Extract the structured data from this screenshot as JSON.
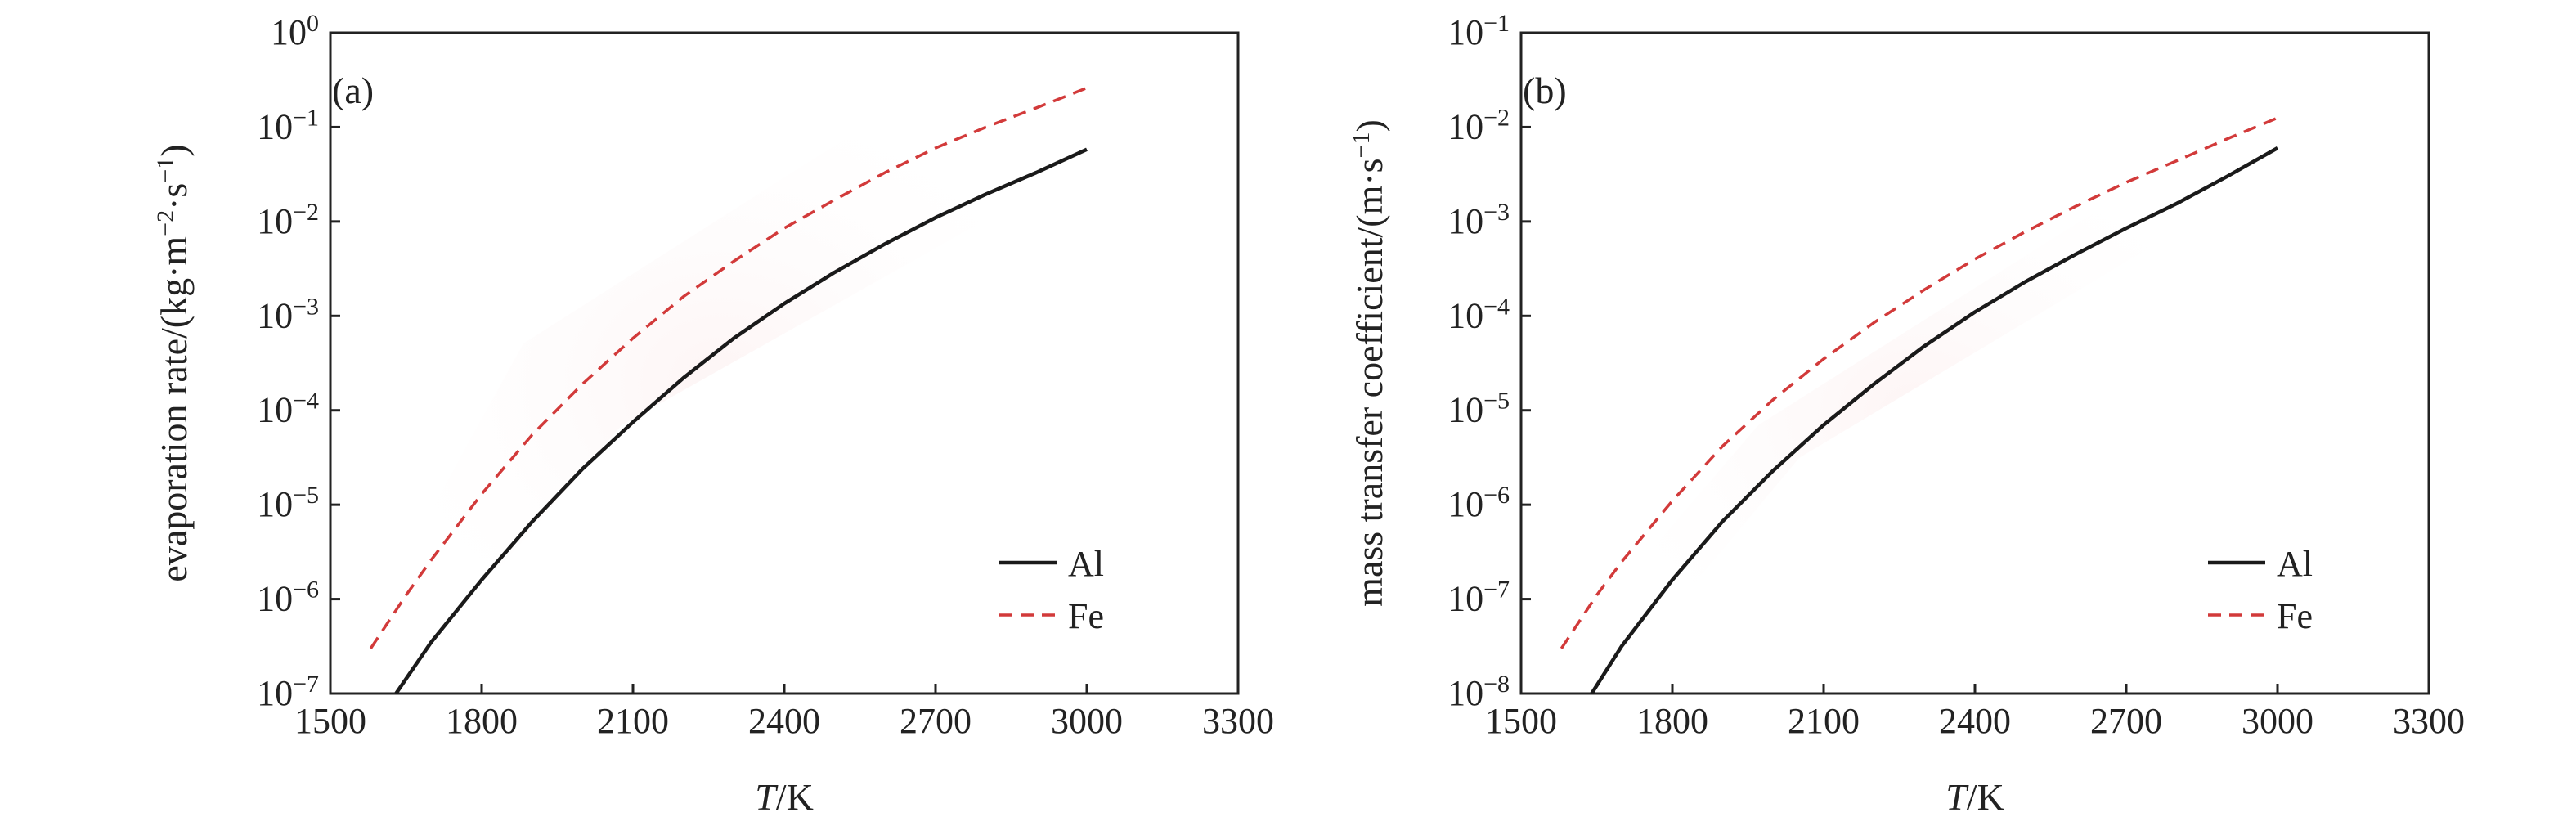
{
  "chart_data": [
    {
      "type": "line",
      "panel_label": "(a)",
      "x_var": "T",
      "x_unit": "/K",
      "ylabel": "evaporation rate/(kg·m",
      "ylabel_unit_tail": "·s",
      "ylabel_end": ")",
      "x_ticks": [
        "1500",
        "1800",
        "2100",
        "2400",
        "2700",
        "3000",
        "3300"
      ],
      "xlim": [
        1500,
        3300
      ],
      "y_scale": "log",
      "ylim": [
        1e-07,
        1
      ],
      "y_tick_exponents": [
        "-7",
        "-6",
        "-5",
        "-4",
        "-3",
        "-2",
        "-1",
        "0"
      ],
      "legend_position": "lower-right",
      "series": [
        {
          "name": "Al",
          "color": "#1a1a1a",
          "style": "solid",
          "x": [
            1630,
            1700,
            1800,
            1900,
            2000,
            2100,
            2200,
            2300,
            2400,
            2500,
            2600,
            2700,
            2800,
            2900,
            3000
          ],
          "y": [
            1e-07,
            3.5e-07,
            1.6e-06,
            6.6e-06,
            2.4e-05,
            7.5e-05,
            0.00022,
            0.00058,
            0.00135,
            0.0029,
            0.0058,
            0.011,
            0.0195,
            0.033,
            0.058
          ]
        },
        {
          "name": "Fe",
          "color": "#d23a3a",
          "style": "dashed",
          "x": [
            1580,
            1650,
            1700,
            1800,
            1900,
            2000,
            2100,
            2200,
            2300,
            2400,
            2500,
            2600,
            2700,
            2800,
            2900,
            3000
          ],
          "y": [
            3e-07,
            1.1e-06,
            2.6e-06,
            1.3e-05,
            5.5e-05,
            0.00019,
            0.00058,
            0.0016,
            0.0038,
            0.0085,
            0.017,
            0.033,
            0.06,
            0.1,
            0.16,
            0.26
          ]
        }
      ]
    },
    {
      "type": "line",
      "panel_label": "(b)",
      "x_var": "T",
      "x_unit": "/K",
      "ylabel": "mass transfer coefficient/(m·s",
      "ylabel_end": ")",
      "x_ticks": [
        "1500",
        "1800",
        "2100",
        "2400",
        "2700",
        "3000",
        "3300"
      ],
      "xlim": [
        1500,
        3300
      ],
      "y_scale": "log",
      "ylim": [
        1e-08,
        0.1
      ],
      "y_tick_exponents": [
        "-8",
        "-7",
        "-6",
        "-5",
        "-4",
        "-3",
        "-2",
        "-1"
      ],
      "legend_position": "lower-right",
      "series": [
        {
          "name": "Al",
          "color": "#1a1a1a",
          "style": "solid",
          "x": [
            1640,
            1700,
            1800,
            1900,
            2000,
            2100,
            2200,
            2300,
            2400,
            2500,
            2600,
            2700,
            2800,
            2900,
            3000
          ],
          "y": [
            1e-08,
            3.2e-08,
            1.6e-07,
            6.7e-07,
            2.3e-06,
            7e-06,
            1.9e-05,
            4.8e-05,
            0.00011,
            0.00023,
            0.00045,
            0.00085,
            0.00155,
            0.003,
            0.006
          ]
        },
        {
          "name": "Fe",
          "color": "#d23a3a",
          "style": "dashed",
          "x": [
            1580,
            1650,
            1700,
            1800,
            1900,
            2000,
            2100,
            2200,
            2300,
            2400,
            2500,
            2600,
            2700,
            2800,
            2900,
            3000
          ],
          "y": [
            3e-08,
            1.1e-07,
            2.5e-07,
            1.1e-06,
            4.2e-06,
            1.3e-05,
            3.5e-05,
            8.5e-05,
            0.00019,
            0.0004,
            0.00078,
            0.00145,
            0.0026,
            0.0044,
            0.0075,
            0.0125
          ]
        }
      ]
    }
  ]
}
